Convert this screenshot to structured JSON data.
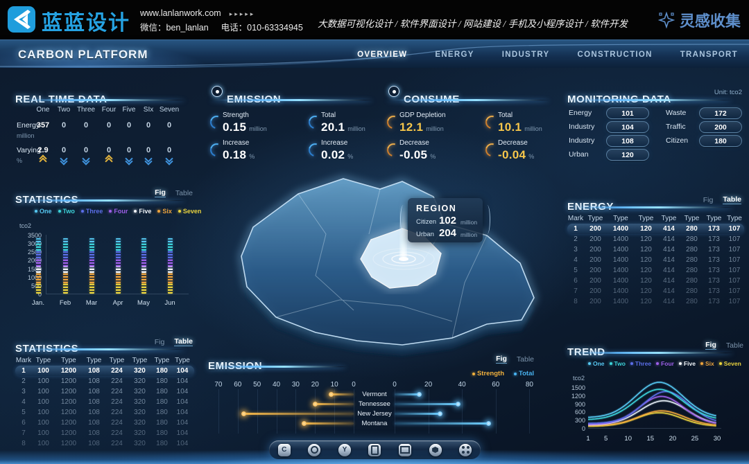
{
  "banner": {
    "brand": "蓝蓝设计",
    "website": "www.lanlanwork.com",
    "arrows": "▸▸▸▸▸",
    "wechat": "微信：ben_lanlan",
    "phone": "电话：010-63334945",
    "services": "大数据可视化设计 / 软件界面设计 / 网站建设 / 手机及小程序设计 / 软件开发",
    "collect": "灵感收集"
  },
  "nav": {
    "title": "CARBON PLATFORM",
    "tabs": [
      {
        "label": "OVERVIEW",
        "active": true
      },
      {
        "label": "ENERGY",
        "active": false
      },
      {
        "label": "INDUSTRY",
        "active": false
      },
      {
        "label": "CONSTRUCTION",
        "active": false
      },
      {
        "label": "TRANSPORT",
        "active": false
      }
    ]
  },
  "realtime": {
    "title": "REAL TIME DATA",
    "columns": [
      "One",
      "Two",
      "Three",
      "Four",
      "Five",
      "SIx",
      "Seven"
    ],
    "rows": [
      {
        "label": "Energy",
        "unit": "million",
        "values": [
          "357",
          "0",
          "0",
          "0",
          "0",
          "0",
          "0"
        ]
      },
      {
        "label": "Varying",
        "unit": "%",
        "values": [
          "2.9",
          "0",
          "0",
          "0",
          "0",
          "0",
          "0"
        ]
      }
    ],
    "trends": [
      {
        "dir": "up",
        "color": "#e2b33c"
      },
      {
        "dir": "down",
        "color": "#3f93de"
      },
      {
        "dir": "down",
        "color": "#3f93de"
      },
      {
        "dir": "up",
        "color": "#e2b33c"
      },
      {
        "dir": "down",
        "color": "#3f93de"
      },
      {
        "dir": "down",
        "color": "#3f93de"
      },
      {
        "dir": "down",
        "color": "#3f93de"
      }
    ]
  },
  "emission_summary": {
    "title": "EMISSION",
    "items": [
      {
        "label": "Strength",
        "value": "0.15",
        "unit": "million",
        "color": "#ffffff"
      },
      {
        "label": "Total",
        "value": "20.1",
        "unit": "million",
        "color": "#ffffff"
      },
      {
        "label": "Increase",
        "value": "0.18",
        "unit": "%",
        "color": "#ffffff"
      },
      {
        "label": "Increase",
        "value": "0.02",
        "unit": "%",
        "color": "#ffffff"
      }
    ]
  },
  "consume_summary": {
    "title": "CONSUME",
    "items": [
      {
        "label": "GDP Depletion",
        "value": "12.1",
        "unit": "million",
        "color": "#f6c64a"
      },
      {
        "label": "Total",
        "value": "10.1",
        "unit": "million",
        "color": "#f6c64a"
      },
      {
        "label": "Decrease",
        "value": "-0.05",
        "unit": "%",
        "color": "#ffffff"
      },
      {
        "label": "Decrease",
        "value": "-0.04",
        "unit": "%",
        "color": "#f6c64a"
      }
    ]
  },
  "monitoring": {
    "title": "MONITORING DATA",
    "unit_label": "Unit: tco2",
    "left": [
      {
        "label": "Energy",
        "value": "101"
      },
      {
        "label": "Industry",
        "value": "104"
      },
      {
        "label": "Industry",
        "value": "108"
      },
      {
        "label": "Urban",
        "value": "120"
      }
    ],
    "right": [
      {
        "label": "Waste",
        "value": "172"
      },
      {
        "label": "Traffic",
        "value": "200"
      },
      {
        "label": "Citizen",
        "value": "180"
      }
    ]
  },
  "statistics_fig": {
    "title": "STATISTICS",
    "view_toggle": {
      "fig": "Fig",
      "table": "Table",
      "active": "fig"
    },
    "legend": [
      {
        "label": "One",
        "color": "#56c8f2"
      },
      {
        "label": "Two",
        "color": "#3dd3da"
      },
      {
        "label": "Three",
        "color": "#5b6ee8"
      },
      {
        "label": "Four",
        "color": "#9d5fe8"
      },
      {
        "label": "Five",
        "color": "#f2f6fa"
      },
      {
        "label": "Six",
        "color": "#eda43d"
      },
      {
        "label": "Seven",
        "color": "#e8d23e"
      }
    ],
    "chart_data": {
      "type": "bar",
      "subtype": "stacked-segmented",
      "ylabel": "tco2",
      "yticks": [
        0,
        500,
        1000,
        1500,
        2000,
        2500,
        3000,
        3500
      ],
      "categories": [
        "Jan.",
        "Feb",
        "Mar",
        "Apr",
        "May",
        "Jun"
      ],
      "series_bottom_to_top": [
        {
          "name": "Seven",
          "color": "#e8d23e",
          "value": 600
        },
        {
          "name": "Six",
          "color": "#eda43d",
          "value": 650
        },
        {
          "name": "Five",
          "color": "#f2f6fa",
          "value": 350
        },
        {
          "name": "Four",
          "color": "#9d5fe8",
          "value": 500
        },
        {
          "name": "Three",
          "color": "#5b6ee8",
          "value": 450
        },
        {
          "name": "Two",
          "color": "#3dd3da",
          "value": 500
        },
        {
          "name": "One",
          "color": "#56c8f2",
          "value": 250
        }
      ]
    }
  },
  "region_popup": {
    "title": "REGION",
    "rows": [
      {
        "label": "Citizen",
        "value": "102",
        "unit": "million"
      },
      {
        "label": "Urban",
        "value": "204",
        "unit": "million"
      }
    ]
  },
  "energy_table": {
    "title": "ENERGY",
    "view_toggle": {
      "fig": "Fig",
      "table": "Table",
      "active": "table"
    },
    "headers": [
      "Mark",
      "Type",
      "Type",
      "Type",
      "Type",
      "Type",
      "Type",
      "Type"
    ],
    "rows": [
      [
        "1",
        "200",
        "1400",
        "120",
        "414",
        "280",
        "173",
        "107"
      ],
      [
        "2",
        "200",
        "1400",
        "120",
        "414",
        "280",
        "173",
        "107"
      ],
      [
        "3",
        "200",
        "1400",
        "120",
        "414",
        "280",
        "173",
        "107"
      ],
      [
        "4",
        "200",
        "1400",
        "120",
        "414",
        "280",
        "173",
        "107"
      ],
      [
        "5",
        "200",
        "1400",
        "120",
        "414",
        "280",
        "173",
        "107"
      ],
      [
        "6",
        "200",
        "1400",
        "120",
        "414",
        "280",
        "173",
        "107"
      ],
      [
        "7",
        "200",
        "1400",
        "120",
        "414",
        "280",
        "173",
        "107"
      ],
      [
        "8",
        "200",
        "1400",
        "120",
        "414",
        "280",
        "173",
        "107"
      ]
    ]
  },
  "statistics_table": {
    "title": "STATISTICS",
    "view_toggle": {
      "fig": "Fig",
      "table": "Table",
      "active": "table"
    },
    "headers": [
      "Mark",
      "Type",
      "Type",
      "Type",
      "Type",
      "Type",
      "Type",
      "Type"
    ],
    "rows": [
      [
        "1",
        "100",
        "1200",
        "108",
        "224",
        "320",
        "180",
        "104"
      ],
      [
        "2",
        "100",
        "1200",
        "108",
        "224",
        "320",
        "180",
        "104"
      ],
      [
        "3",
        "100",
        "1200",
        "108",
        "224",
        "320",
        "180",
        "104"
      ],
      [
        "4",
        "100",
        "1200",
        "108",
        "224",
        "320",
        "180",
        "104"
      ],
      [
        "5",
        "100",
        "1200",
        "108",
        "224",
        "320",
        "180",
        "104"
      ],
      [
        "6",
        "100",
        "1200",
        "108",
        "224",
        "320",
        "180",
        "104"
      ],
      [
        "7",
        "100",
        "1200",
        "108",
        "224",
        "320",
        "180",
        "104"
      ],
      [
        "8",
        "100",
        "1200",
        "108",
        "224",
        "320",
        "180",
        "104"
      ]
    ]
  },
  "emission_chart": {
    "title": "EMISSION",
    "view_toggle": {
      "fig": "Fig",
      "table": "Table",
      "active": "fig"
    },
    "legend": [
      {
        "label": "Strength",
        "color": "#f2b13d"
      },
      {
        "label": "Total",
        "color": "#49b4f2"
      }
    ],
    "chart_data": {
      "type": "bar",
      "subtype": "horizontal-mirror",
      "categories": [
        "Vermont",
        "Tennessee",
        "New Jersey",
        "Montana"
      ],
      "left_axis_ticks": [
        70,
        60,
        50,
        40,
        30,
        20,
        10,
        0
      ],
      "right_axis_ticks": [
        0,
        20,
        40,
        60,
        80
      ],
      "series": [
        {
          "name": "Strength",
          "color": "#f2b13d",
          "values": [
            12,
            20,
            57,
            26
          ]
        },
        {
          "name": "Total",
          "color": "#49b4f2",
          "values": [
            15,
            38,
            27,
            56
          ]
        }
      ]
    }
  },
  "trend": {
    "title": "TREND",
    "view_toggle": {
      "fig": "Fig",
      "table": "Table",
      "active": "fig"
    },
    "legend": [
      {
        "label": "One",
        "color": "#56c8f2"
      },
      {
        "label": "Two",
        "color": "#3dd3da"
      },
      {
        "label": "Three",
        "color": "#5b6ee8"
      },
      {
        "label": "Four",
        "color": "#9d5fe8"
      },
      {
        "label": "Five",
        "color": "#f2f6fa"
      },
      {
        "label": "Six",
        "color": "#eda43d"
      },
      {
        "label": "Seven",
        "color": "#e8d23e"
      }
    ],
    "chart_data": {
      "type": "line",
      "ylabel": "tco2",
      "yticks": [
        0,
        300,
        600,
        900,
        1200,
        1500
      ],
      "xticks": [
        1,
        5,
        10,
        15,
        20,
        25,
        30
      ],
      "series": [
        {
          "name": "One",
          "color": "#56c8f2",
          "base": 380,
          "peak": 1680,
          "center": 17,
          "sigma": 5.3
        },
        {
          "name": "Two",
          "color": "#3dd3da",
          "base": 300,
          "peak": 1420,
          "center": 17,
          "sigma": 5.4
        },
        {
          "name": "Three",
          "color": "#5b6ee8",
          "base": 170,
          "peak": 1340,
          "center": 18.5,
          "sigma": 5.1
        },
        {
          "name": "Four",
          "color": "#9d5fe8",
          "base": 130,
          "peak": 1160,
          "center": 17.5,
          "sigma": 5.0
        },
        {
          "name": "Five",
          "color": "#e4ecf4",
          "base": 110,
          "peak": 1000,
          "center": 18,
          "sigma": 5.3
        },
        {
          "name": "Six",
          "color": "#eda43d",
          "base": 90,
          "peak": 630,
          "center": 17.5,
          "sigma": 5.0
        },
        {
          "name": "Seven",
          "color": "#e8d23e",
          "base": 60,
          "peak": 560,
          "center": 17,
          "sigma": 5.0
        }
      ]
    }
  },
  "dock": {
    "icons": [
      {
        "name": "hex-c-icon",
        "glyph": "C"
      },
      {
        "name": "gear-icon",
        "glyph": ""
      },
      {
        "name": "circle-y-icon",
        "glyph": "Y"
      },
      {
        "name": "charging-station-icon",
        "glyph": ""
      },
      {
        "name": "monitor-icon",
        "glyph": ""
      },
      {
        "name": "nut-icon",
        "glyph": ""
      },
      {
        "name": "apps-grid-icon",
        "glyph": ""
      }
    ]
  }
}
